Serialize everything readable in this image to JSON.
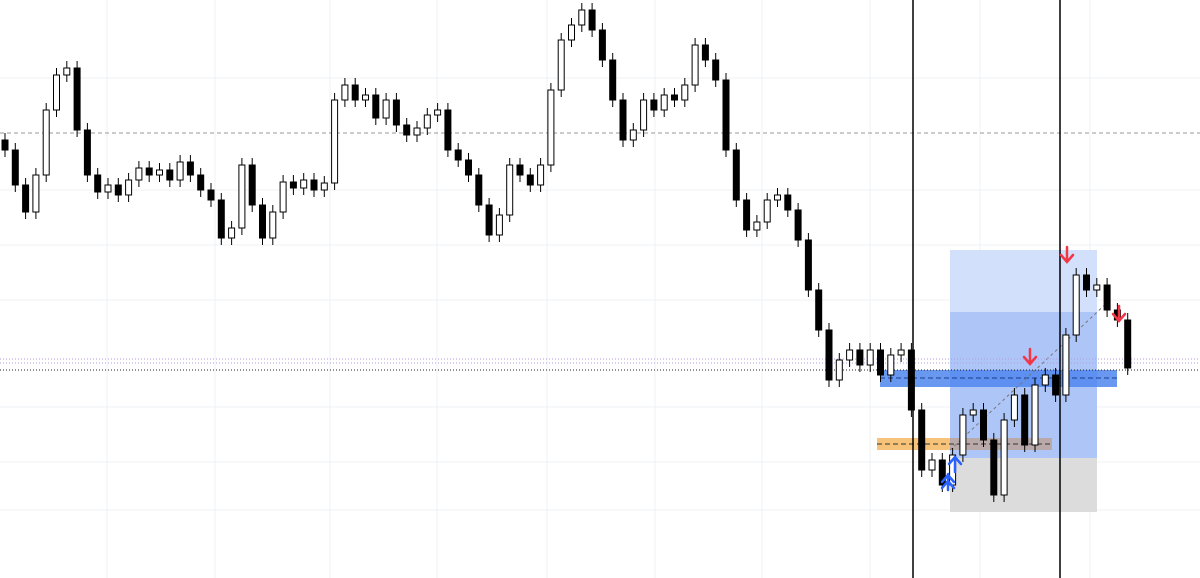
{
  "chart_data": {
    "type": "candlestick",
    "ylim": [
      0,
      578
    ],
    "up_color": "#ffffff",
    "down_color": "#000000",
    "wick_color": "#000000",
    "opens": [
      438,
      428,
      393,
      366,
      403,
      468,
      503,
      510,
      448,
      403,
      386,
      393,
      383,
      398,
      410,
      403,
      408,
      398,
      416,
      403,
      388,
      378,
      340,
      350,
      413,
      373,
      340,
      366,
      396,
      390,
      398,
      388,
      395,
      478,
      493,
      478,
      483,
      460,
      478,
      453,
      443,
      450,
      463,
      468,
      428,
      418,
      403,
      373,
      343,
      363,
      413,
      403,
      393,
      413,
      488,
      538,
      553,
      568,
      548,
      518,
      478,
      438,
      448,
      478,
      468,
      483,
      478,
      493,
      533,
      518,
      498,
      428,
      378,
      348,
      356,
      378,
      383,
      368,
      338,
      288,
      248,
      198,
      218,
      228,
      213,
      228,
      203,
      223,
      228,
      168,
      108,
      118,
      93,
      123,
      163,
      168,
      138,
      83,
      158,
      183,
      133,
      193,
      203,
      183,
      243,
      303,
      288,
      293,
      268,
      258
    ],
    "highs": [
      445,
      435,
      400,
      410,
      475,
      510,
      517,
      517,
      455,
      410,
      400,
      400,
      405,
      417,
      417,
      415,
      415,
      423,
      423,
      410,
      395,
      385,
      357,
      420,
      420,
      380,
      373,
      403,
      403,
      405,
      405,
      402,
      485,
      500,
      500,
      490,
      490,
      485,
      485,
      460,
      457,
      470,
      475,
      475,
      435,
      425,
      410,
      380,
      370,
      420,
      420,
      410,
      420,
      495,
      545,
      560,
      575,
      575,
      555,
      525,
      485,
      455,
      485,
      485,
      490,
      490,
      500,
      540,
      540,
      525,
      505,
      435,
      385,
      363,
      385,
      390,
      390,
      375,
      345,
      295,
      255,
      225,
      235,
      235,
      235,
      235,
      230,
      235,
      235,
      175,
      125,
      125,
      130,
      170,
      175,
      175,
      145,
      165,
      190,
      190,
      200,
      210,
      210,
      250,
      310,
      310,
      300,
      300,
      275,
      265
    ],
    "lows": [
      421,
      386,
      359,
      359,
      396,
      461,
      496,
      441,
      396,
      379,
      379,
      376,
      376,
      391,
      396,
      396,
      391,
      391,
      396,
      381,
      371,
      333,
      333,
      343,
      366,
      333,
      333,
      359,
      383,
      383,
      381,
      381,
      388,
      471,
      471,
      471,
      453,
      453,
      446,
      436,
      436,
      443,
      456,
      421,
      411,
      396,
      366,
      336,
      336,
      356,
      396,
      386,
      386,
      406,
      481,
      531,
      546,
      541,
      511,
      471,
      431,
      431,
      441,
      461,
      461,
      471,
      471,
      486,
      511,
      491,
      421,
      371,
      341,
      341,
      349,
      371,
      361,
      331,
      281,
      241,
      191,
      191,
      211,
      206,
      206,
      196,
      196,
      216,
      161,
      101,
      101,
      86,
      86,
      116,
      156,
      131,
      76,
      76,
      151,
      126,
      126,
      186,
      176,
      176,
      236,
      281,
      281,
      261,
      251,
      203
    ],
    "closes": [
      428,
      393,
      366,
      403,
      468,
      503,
      510,
      448,
      403,
      386,
      393,
      383,
      398,
      410,
      403,
      408,
      398,
      416,
      403,
      388,
      378,
      340,
      350,
      413,
      373,
      340,
      366,
      396,
      390,
      398,
      388,
      395,
      478,
      493,
      478,
      483,
      460,
      478,
      453,
      443,
      450,
      463,
      468,
      428,
      418,
      403,
      373,
      343,
      363,
      413,
      403,
      393,
      413,
      488,
      538,
      553,
      568,
      548,
      518,
      478,
      438,
      448,
      478,
      468,
      483,
      478,
      493,
      533,
      518,
      498,
      428,
      378,
      348,
      356,
      378,
      383,
      368,
      338,
      288,
      248,
      198,
      218,
      228,
      213,
      228,
      203,
      223,
      228,
      168,
      108,
      118,
      93,
      123,
      163,
      168,
      138,
      83,
      158,
      183,
      133,
      193,
      203,
      183,
      243,
      303,
      288,
      293,
      268,
      258,
      210
    ]
  }
}
